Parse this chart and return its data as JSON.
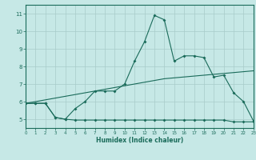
{
  "xlabel": "Humidex (Indice chaleur)",
  "xlim": [
    0,
    23
  ],
  "ylim": [
    4.5,
    11.5
  ],
  "yticks": [
    5,
    6,
    7,
    8,
    9,
    10,
    11
  ],
  "xticks": [
    0,
    1,
    2,
    3,
    4,
    5,
    6,
    7,
    8,
    9,
    10,
    11,
    12,
    13,
    14,
    15,
    16,
    17,
    18,
    19,
    20,
    21,
    22,
    23
  ],
  "background_color": "#c6e8e6",
  "grid_color": "#a8ccca",
  "line_color": "#1a6b5a",
  "line1_x": [
    0,
    1,
    2,
    3,
    4,
    5,
    6,
    7,
    8,
    9,
    10,
    11,
    12,
    13,
    14,
    15,
    16,
    17,
    18,
    19,
    20,
    21,
    22,
    23
  ],
  "line1_y": [
    5.9,
    5.9,
    5.9,
    5.1,
    5.0,
    5.6,
    6.0,
    6.6,
    6.6,
    6.6,
    7.0,
    8.3,
    9.4,
    10.9,
    10.65,
    8.3,
    8.6,
    8.6,
    8.5,
    7.4,
    7.5,
    6.5,
    6.0,
    4.9
  ],
  "line2_x": [
    0,
    1,
    2,
    3,
    4,
    5,
    6,
    7,
    8,
    9,
    10,
    11,
    12,
    13,
    14,
    15,
    16,
    17,
    18,
    19,
    20,
    21,
    22,
    23
  ],
  "line2_y": [
    5.9,
    5.9,
    5.9,
    5.1,
    5.0,
    4.95,
    4.95,
    4.95,
    4.95,
    4.95,
    4.95,
    4.95,
    4.95,
    4.95,
    4.95,
    4.95,
    4.95,
    4.95,
    4.95,
    4.95,
    4.95,
    4.85,
    4.85,
    4.85
  ],
  "line3_x": [
    0,
    1,
    2,
    3,
    4,
    5,
    6,
    7,
    8,
    9,
    10,
    11,
    12,
    13,
    14,
    15,
    16,
    17,
    18,
    19,
    20,
    21,
    22,
    23
  ],
  "line3_y": [
    5.9,
    6.0,
    6.1,
    6.2,
    6.3,
    6.4,
    6.5,
    6.6,
    6.7,
    6.8,
    6.9,
    7.0,
    7.1,
    7.2,
    7.3,
    7.35,
    7.4,
    7.45,
    7.5,
    7.55,
    7.6,
    7.65,
    7.7,
    7.75
  ]
}
